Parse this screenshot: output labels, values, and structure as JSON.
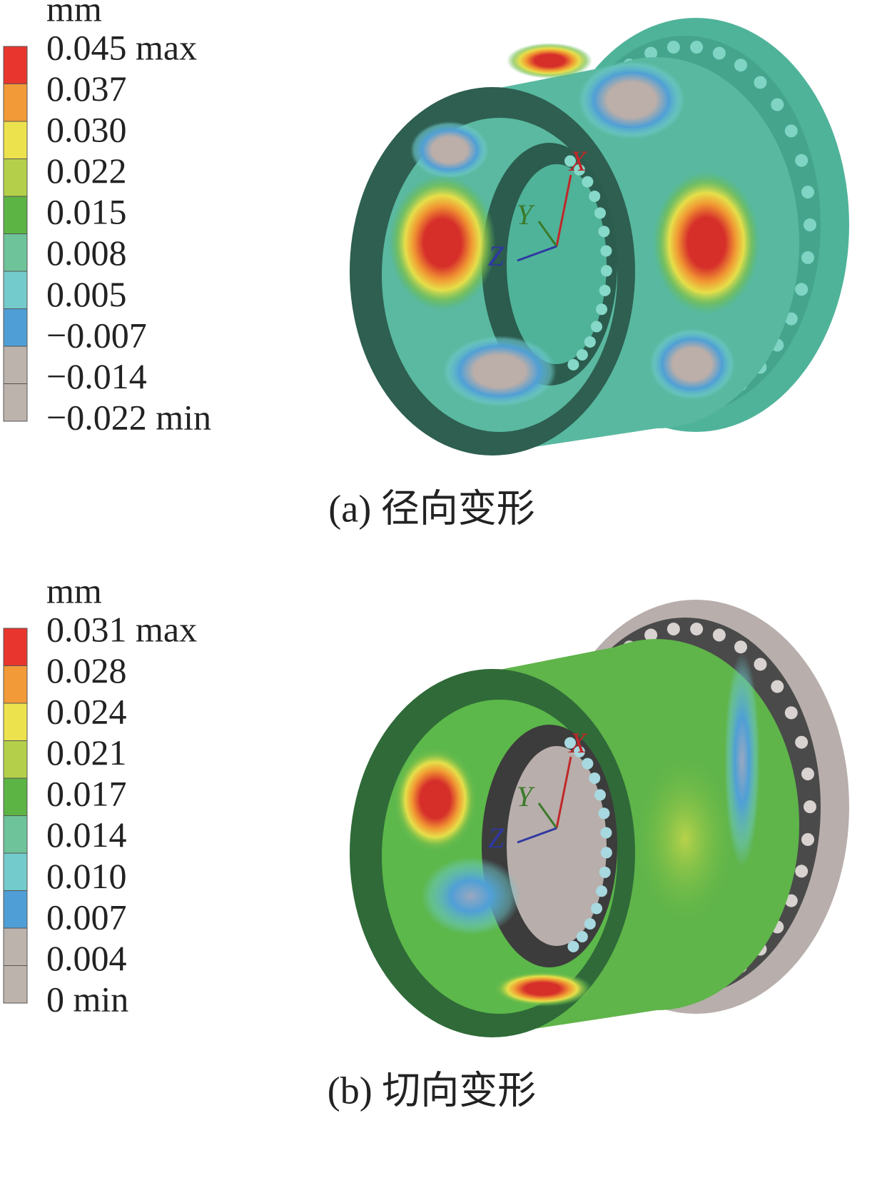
{
  "panels": [
    {
      "unit": "mm",
      "legend": [
        "0.045 max",
        "0.037",
        "0.030",
        "0.022",
        "0.015",
        "0.008",
        "0.005",
        "−0.007",
        "−0.014",
        "−0.022 min"
      ],
      "triad": [
        "X",
        "Y",
        "Z"
      ],
      "caption": "(a) 径向变形"
    },
    {
      "unit": "mm",
      "legend": [
        "0.031 max",
        "0.028",
        "0.024",
        "0.021",
        "0.017",
        "0.014",
        "0.010",
        "0.007",
        "0.004",
        "0 min"
      ],
      "triad": [
        "X",
        "Y",
        "Z"
      ],
      "caption": "(b) 切向变形"
    }
  ]
}
